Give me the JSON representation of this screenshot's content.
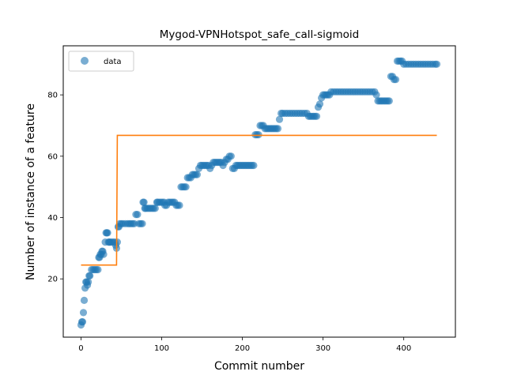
{
  "chart_data": {
    "type": "scatter",
    "title": "Mygod-VPNHotspot_safe_call-sigmoid",
    "xlabel": "Commit number",
    "ylabel": "Number of instance of a feature",
    "xlim": [
      -22,
      464
    ],
    "ylim": [
      1,
      96
    ],
    "xticks": [
      0,
      100,
      200,
      300,
      400
    ],
    "yticks": [
      20,
      40,
      60,
      80
    ],
    "grid": false,
    "legend": {
      "placement": "top-left",
      "entries": [
        "data"
      ]
    },
    "colors": {
      "data": "#1f77b4",
      "fit": "#ff7f0e"
    },
    "series": [
      {
        "name": "data",
        "style": "markers",
        "points": [
          [
            0,
            5
          ],
          [
            1,
            6
          ],
          [
            2,
            6
          ],
          [
            3,
            9
          ],
          [
            4,
            13
          ],
          [
            5,
            17
          ],
          [
            6,
            19
          ],
          [
            7,
            19
          ],
          [
            8,
            18
          ],
          [
            9,
            19
          ],
          [
            10,
            21
          ],
          [
            11,
            21
          ],
          [
            13,
            23
          ],
          [
            15,
            23
          ],
          [
            17,
            23
          ],
          [
            19,
            23
          ],
          [
            21,
            23
          ],
          [
            22,
            27
          ],
          [
            23,
            27
          ],
          [
            24,
            28
          ],
          [
            25,
            28
          ],
          [
            26,
            29
          ],
          [
            27,
            29
          ],
          [
            28,
            28
          ],
          [
            30,
            32
          ],
          [
            31,
            35
          ],
          [
            32,
            35
          ],
          [
            33,
            35
          ],
          [
            34,
            32
          ],
          [
            35,
            32
          ],
          [
            36,
            32
          ],
          [
            38,
            32
          ],
          [
            40,
            32
          ],
          [
            42,
            32
          ],
          [
            43,
            31
          ],
          [
            44,
            30
          ],
          [
            45,
            32
          ],
          [
            46,
            37
          ],
          [
            47,
            37
          ],
          [
            48,
            38
          ],
          [
            50,
            38
          ],
          [
            52,
            38
          ],
          [
            55,
            38
          ],
          [
            58,
            38
          ],
          [
            60,
            38
          ],
          [
            62,
            38
          ],
          [
            64,
            38
          ],
          [
            66,
            38
          ],
          [
            68,
            41
          ],
          [
            70,
            41
          ],
          [
            72,
            38
          ],
          [
            74,
            38
          ],
          [
            76,
            38
          ],
          [
            77,
            45
          ],
          [
            78,
            45
          ],
          [
            79,
            43
          ],
          [
            80,
            43
          ],
          [
            82,
            43
          ],
          [
            84,
            43
          ],
          [
            86,
            43
          ],
          [
            88,
            43
          ],
          [
            90,
            43
          ],
          [
            92,
            43
          ],
          [
            94,
            45
          ],
          [
            95,
            45
          ],
          [
            97,
            45
          ],
          [
            99,
            45
          ],
          [
            101,
            45
          ],
          [
            103,
            45
          ],
          [
            104,
            44
          ],
          [
            106,
            44
          ],
          [
            108,
            45
          ],
          [
            110,
            45
          ],
          [
            112,
            45
          ],
          [
            114,
            45
          ],
          [
            116,
            45
          ],
          [
            118,
            44
          ],
          [
            120,
            44
          ],
          [
            122,
            44
          ],
          [
            124,
            50
          ],
          [
            126,
            50
          ],
          [
            128,
            50
          ],
          [
            130,
            50
          ],
          [
            132,
            53
          ],
          [
            134,
            53
          ],
          [
            136,
            53
          ],
          [
            138,
            54
          ],
          [
            140,
            54
          ],
          [
            142,
            54
          ],
          [
            144,
            54
          ],
          [
            146,
            56
          ],
          [
            148,
            57
          ],
          [
            150,
            57
          ],
          [
            152,
            57
          ],
          [
            154,
            57
          ],
          [
            156,
            57
          ],
          [
            158,
            57
          ],
          [
            160,
            56
          ],
          [
            162,
            57
          ],
          [
            164,
            58
          ],
          [
            166,
            58
          ],
          [
            168,
            58
          ],
          [
            170,
            58
          ],
          [
            172,
            58
          ],
          [
            174,
            58
          ],
          [
            176,
            57
          ],
          [
            178,
            58
          ],
          [
            180,
            59
          ],
          [
            182,
            59
          ],
          [
            184,
            60
          ],
          [
            186,
            60
          ],
          [
            188,
            56
          ],
          [
            190,
            56
          ],
          [
            192,
            57
          ],
          [
            194,
            57
          ],
          [
            196,
            57
          ],
          [
            198,
            57
          ],
          [
            200,
            57
          ],
          [
            202,
            57
          ],
          [
            204,
            57
          ],
          [
            206,
            57
          ],
          [
            208,
            57
          ],
          [
            210,
            57
          ],
          [
            212,
            57
          ],
          [
            214,
            57
          ],
          [
            216,
            67
          ],
          [
            218,
            67
          ],
          [
            220,
            67
          ],
          [
            222,
            70
          ],
          [
            224,
            70
          ],
          [
            226,
            70
          ],
          [
            228,
            69
          ],
          [
            230,
            69
          ],
          [
            232,
            69
          ],
          [
            234,
            69
          ],
          [
            236,
            69
          ],
          [
            238,
            69
          ],
          [
            240,
            69
          ],
          [
            242,
            69
          ],
          [
            244,
            69
          ],
          [
            246,
            72
          ],
          [
            248,
            74
          ],
          [
            250,
            74
          ],
          [
            253,
            74
          ],
          [
            256,
            74
          ],
          [
            259,
            74
          ],
          [
            262,
            74
          ],
          [
            265,
            74
          ],
          [
            268,
            74
          ],
          [
            271,
            74
          ],
          [
            274,
            74
          ],
          [
            277,
            74
          ],
          [
            280,
            74
          ],
          [
            282,
            73
          ],
          [
            284,
            73
          ],
          [
            286,
            73
          ],
          [
            288,
            73
          ],
          [
            290,
            73
          ],
          [
            292,
            73
          ],
          [
            294,
            76
          ],
          [
            296,
            77
          ],
          [
            298,
            79
          ],
          [
            300,
            80
          ],
          [
            302,
            80
          ],
          [
            304,
            80
          ],
          [
            306,
            80
          ],
          [
            308,
            80
          ],
          [
            310,
            81
          ],
          [
            313,
            81
          ],
          [
            316,
            81
          ],
          [
            319,
            81
          ],
          [
            322,
            81
          ],
          [
            325,
            81
          ],
          [
            328,
            81
          ],
          [
            331,
            81
          ],
          [
            334,
            81
          ],
          [
            337,
            81
          ],
          [
            340,
            81
          ],
          [
            343,
            81
          ],
          [
            346,
            81
          ],
          [
            349,
            81
          ],
          [
            352,
            81
          ],
          [
            355,
            81
          ],
          [
            358,
            81
          ],
          [
            361,
            81
          ],
          [
            364,
            81
          ],
          [
            366,
            80
          ],
          [
            368,
            78
          ],
          [
            370,
            78
          ],
          [
            372,
            78
          ],
          [
            374,
            78
          ],
          [
            376,
            78
          ],
          [
            378,
            78
          ],
          [
            380,
            78
          ],
          [
            382,
            78
          ],
          [
            384,
            86
          ],
          [
            386,
            86
          ],
          [
            388,
            85
          ],
          [
            390,
            85
          ],
          [
            392,
            91
          ],
          [
            394,
            91
          ],
          [
            396,
            91
          ],
          [
            398,
            91
          ],
          [
            400,
            90
          ],
          [
            403,
            90
          ],
          [
            406,
            90
          ],
          [
            409,
            90
          ],
          [
            412,
            90
          ],
          [
            415,
            90
          ],
          [
            418,
            90
          ],
          [
            421,
            90
          ],
          [
            424,
            90
          ],
          [
            427,
            90
          ],
          [
            430,
            90
          ],
          [
            433,
            90
          ],
          [
            436,
            90
          ],
          [
            439,
            90
          ],
          [
            441,
            90
          ]
        ]
      },
      {
        "name": "",
        "style": "step-line",
        "points": [
          [
            0,
            24.5
          ],
          [
            43,
            24.5
          ],
          [
            44,
            24.5
          ],
          [
            45,
            66.8
          ],
          [
            46,
            66.8
          ],
          [
            441,
            66.8
          ]
        ]
      }
    ]
  }
}
